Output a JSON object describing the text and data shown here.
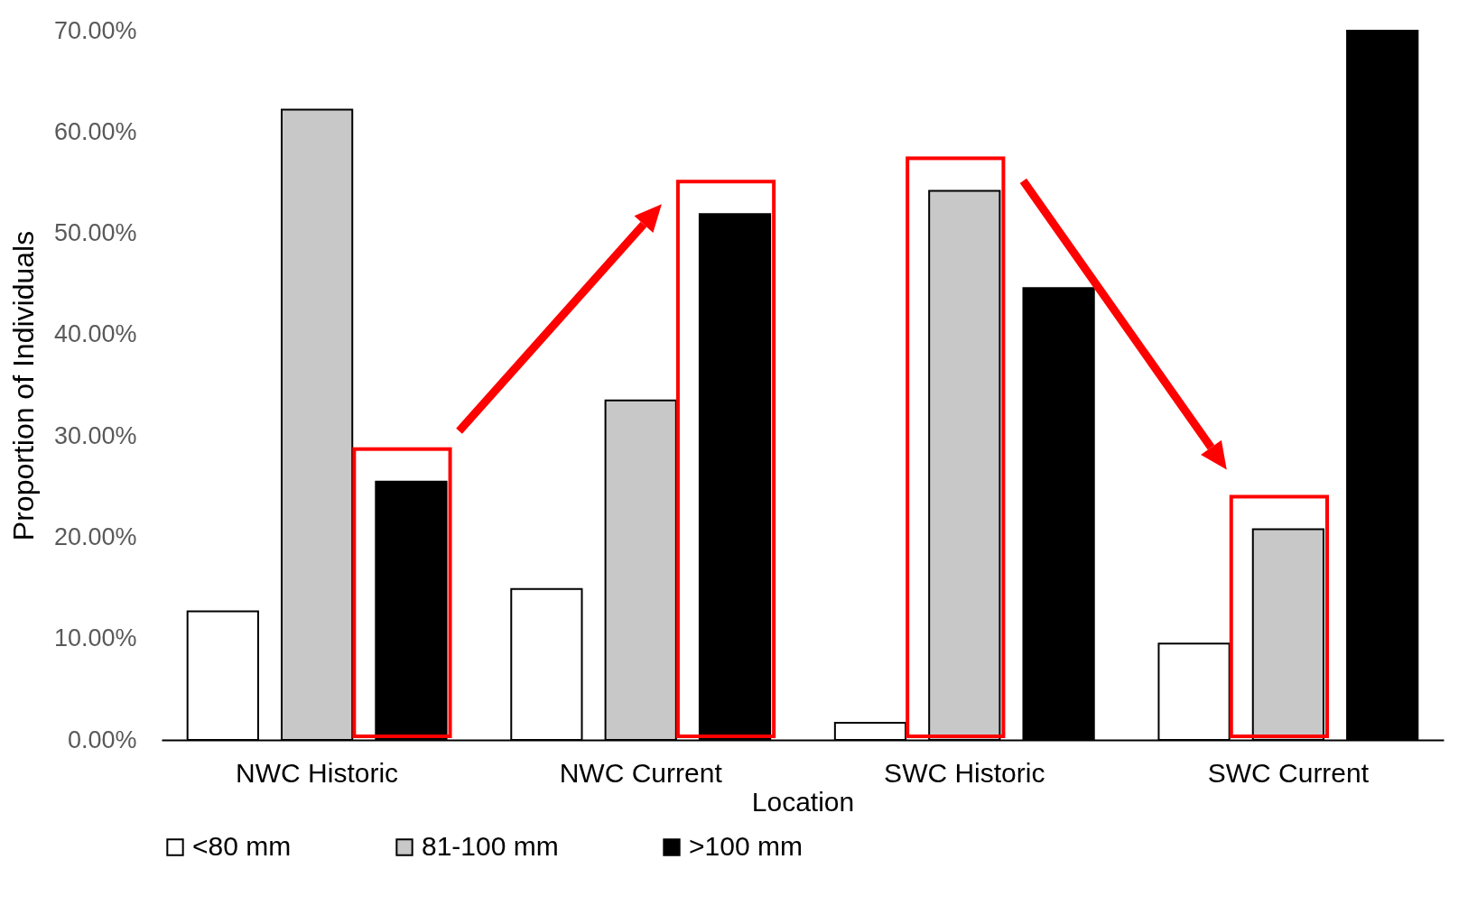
{
  "chart_data": {
    "type": "bar",
    "xlabel": "Location",
    "ylabel": "Proportion of Individuals",
    "categories": [
      "NWC Historic",
      "NWC Current",
      "SWC Historic",
      "SWC Current"
    ],
    "series": [
      {
        "name": "<80 mm",
        "color": "#ffffff",
        "values": [
          12.7,
          14.9,
          1.7,
          9.5
        ]
      },
      {
        "name": "81-100 mm",
        "color": "#c8c8c8",
        "values": [
          62.2,
          33.5,
          54.2,
          20.8
        ]
      },
      {
        "name": ">100 mm",
        "color": "#000000",
        "values": [
          25.5,
          51.9,
          44.6,
          70.0
        ]
      }
    ],
    "ylim": [
      0,
      70
    ],
    "yticks": [
      {
        "value": 0,
        "label": "0.00%"
      },
      {
        "value": 10,
        "label": "10.00%"
      },
      {
        "value": 20,
        "label": "20.00%"
      },
      {
        "value": 30,
        "label": "30.00%"
      },
      {
        "value": 40,
        "label": "40.00%"
      },
      {
        "value": 50,
        "label": "50.00%"
      },
      {
        "value": 60,
        "label": "60.00%"
      },
      {
        "value": 70,
        "label": "70.00%"
      }
    ],
    "legend": "bottom"
  }
}
